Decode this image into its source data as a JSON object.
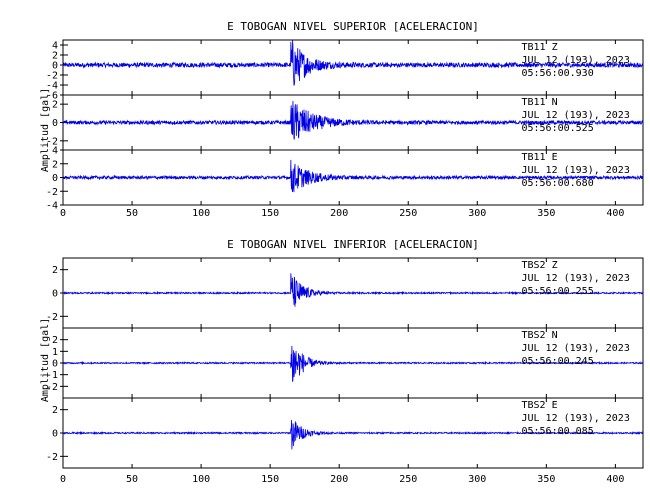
{
  "chart_data": [
    {
      "type": "line",
      "title": "E TOBOGAN NIVEL SUPERIOR [ACELERACION]",
      "ylabel": "Amplitud  [gal]",
      "xlim": [
        0,
        420
      ],
      "x_ticks": [
        0,
        50,
        100,
        150,
        200,
        250,
        300,
        350,
        400
      ],
      "series": [
        {
          "station": "TB11",
          "component": "Z",
          "date": "JUL 12 (193), 2023",
          "time": "05:56:00.930",
          "ylim": [
            -6,
            5
          ],
          "y_ticks": [
            -6,
            -4,
            -2,
            0,
            2,
            4
          ],
          "event_onset_s": 165,
          "peak_amplitude": 5.5,
          "decay_s": 10,
          "noise": 0.45
        },
        {
          "station": "TB11",
          "component": "N",
          "date": "JUL 12 (193), 2023",
          "time": "05:56:00.525",
          "ylim": [
            -3,
            3
          ],
          "y_ticks": [
            -2,
            0,
            2
          ],
          "event_onset_s": 165,
          "peak_amplitude": 2.6,
          "decay_s": 14,
          "noise": 0.2
        },
        {
          "station": "TB11",
          "component": "E",
          "date": "JUL 12 (193), 2023",
          "time": "05:56:00.680",
          "ylim": [
            -4,
            4
          ],
          "y_ticks": [
            -4,
            -2,
            0,
            2,
            4
          ],
          "event_onset_s": 165,
          "peak_amplitude": 2.5,
          "decay_s": 12,
          "noise": 0.22
        }
      ]
    },
    {
      "type": "line",
      "title": "E TOBOGAN NIVEL INFERIOR [ACELERACION]",
      "ylabel": "Amplitud  [gal]",
      "xlim": [
        0,
        420
      ],
      "x_ticks": [
        0,
        50,
        100,
        150,
        200,
        250,
        300,
        350,
        400
      ],
      "series": [
        {
          "station": "TBS2",
          "component": "Z",
          "date": "JUL 12 (193), 2023",
          "time": "05:56:00.255",
          "ylim": [
            -3,
            3
          ],
          "y_ticks": [
            -2,
            0,
            2
          ],
          "event_onset_s": 165,
          "peak_amplitude": 1.9,
          "decay_s": 8,
          "noise": 0.06
        },
        {
          "station": "TBS2",
          "component": "N",
          "date": "JUL 12 (193), 2023",
          "time": "05:56:00.245",
          "ylim": [
            -3,
            3
          ],
          "y_ticks": [
            -2,
            -1,
            0,
            1,
            2
          ],
          "event_onset_s": 165,
          "peak_amplitude": 2.7,
          "decay_s": 7,
          "noise": 0.06
        },
        {
          "station": "TBS2",
          "component": "E",
          "date": "JUL 12 (193), 2023",
          "time": "05:56:00.085",
          "ylim": [
            -3,
            3
          ],
          "y_ticks": [
            -2,
            0,
            2
          ],
          "event_onset_s": 165,
          "peak_amplitude": 1.6,
          "decay_s": 7,
          "noise": 0.06
        }
      ]
    }
  ]
}
